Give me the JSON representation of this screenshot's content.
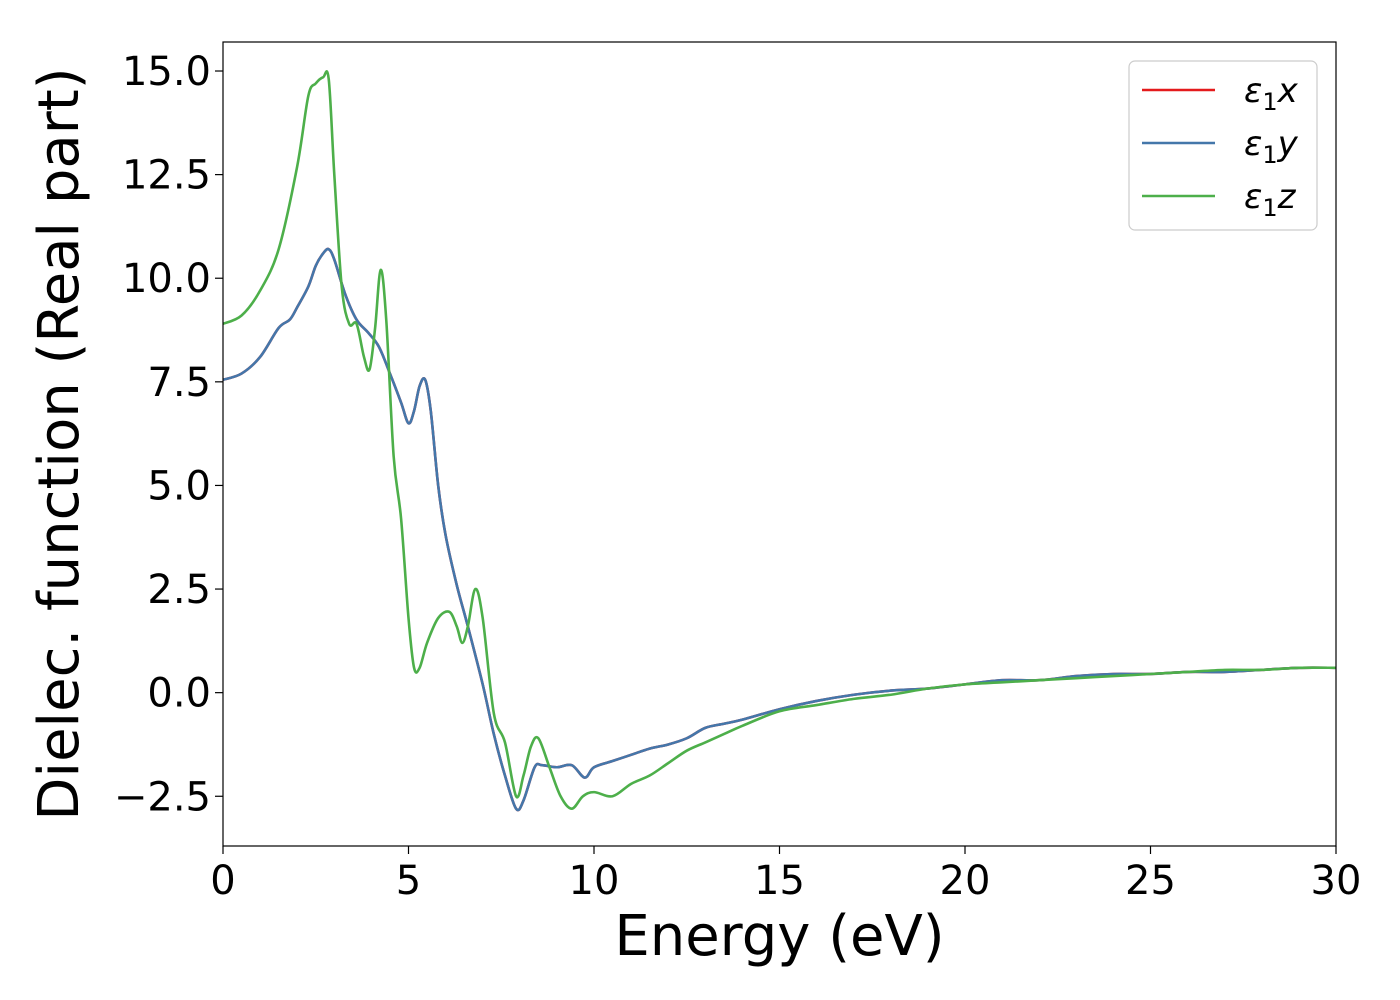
{
  "chart_data": {
    "type": "line",
    "xlabel": "Energy (eV)",
    "ylabel": "Dielec. function (Real part)",
    "xlim": [
      0,
      30
    ],
    "ylim": [
      -3.7,
      15.7
    ],
    "x_ticks": [
      0,
      5,
      10,
      15,
      20,
      25,
      30
    ],
    "x_tick_labels": [
      "0",
      "5",
      "10",
      "15",
      "20",
      "25",
      "30"
    ],
    "y_ticks": [
      -2.5,
      0.0,
      2.5,
      5.0,
      7.5,
      10.0,
      12.5,
      15.0
    ],
    "y_tick_labels": [
      "−2.5",
      "0.0",
      "2.5",
      "5.0",
      "7.5",
      "10.0",
      "12.5",
      "15.0"
    ],
    "grid": false,
    "legend_position": "top-right",
    "series": [
      {
        "name": "ε1x",
        "legend_main": "ε",
        "legend_sub": "1",
        "legend_suffix": "x",
        "color": "#e41a1c",
        "x": [
          0,
          0.5,
          1.0,
          1.5,
          1.8,
          2.0,
          2.3,
          2.5,
          2.7,
          2.85,
          3.0,
          3.3,
          3.6,
          3.9,
          4.2,
          4.5,
          4.8,
          5.0,
          5.15,
          5.3,
          5.45,
          5.6,
          5.8,
          6.0,
          6.3,
          6.6,
          7.0,
          7.3,
          7.6,
          7.9,
          8.1,
          8.4,
          8.6,
          9.0,
          9.4,
          9.75,
          10.0,
          10.5,
          11.0,
          11.5,
          12.0,
          12.5,
          13.0,
          13.5,
          14.0,
          15.0,
          16.0,
          17.0,
          18.0,
          19.0,
          20.0,
          21.0,
          22.0,
          23.0,
          24.0,
          25.0,
          26.0,
          27.0,
          28.0,
          29.0,
          30.0
        ],
        "y": [
          7.55,
          7.7,
          8.1,
          8.8,
          9.0,
          9.3,
          9.8,
          10.3,
          10.6,
          10.7,
          10.45,
          9.6,
          9.0,
          8.7,
          8.35,
          7.7,
          7.0,
          6.5,
          6.8,
          7.4,
          7.55,
          6.8,
          5.0,
          3.8,
          2.6,
          1.6,
          0.2,
          -1.0,
          -2.0,
          -2.8,
          -2.6,
          -1.8,
          -1.75,
          -1.8,
          -1.75,
          -2.05,
          -1.8,
          -1.65,
          -1.5,
          -1.35,
          -1.25,
          -1.1,
          -0.85,
          -0.75,
          -0.65,
          -0.4,
          -0.2,
          -0.05,
          0.05,
          0.1,
          0.2,
          0.3,
          0.3,
          0.4,
          0.45,
          0.45,
          0.5,
          0.5,
          0.55,
          0.6,
          0.6
        ]
      },
      {
        "name": "ε1y",
        "legend_main": "ε",
        "legend_sub": "1",
        "legend_suffix": "y",
        "color": "#4477aa",
        "x": [
          0,
          0.5,
          1.0,
          1.5,
          1.8,
          2.0,
          2.3,
          2.5,
          2.7,
          2.85,
          3.0,
          3.3,
          3.6,
          3.9,
          4.2,
          4.5,
          4.8,
          5.0,
          5.15,
          5.3,
          5.45,
          5.6,
          5.8,
          6.0,
          6.3,
          6.6,
          7.0,
          7.3,
          7.6,
          7.9,
          8.1,
          8.4,
          8.6,
          9.0,
          9.4,
          9.75,
          10.0,
          10.5,
          11.0,
          11.5,
          12.0,
          12.5,
          13.0,
          13.5,
          14.0,
          15.0,
          16.0,
          17.0,
          18.0,
          19.0,
          20.0,
          21.0,
          22.0,
          23.0,
          24.0,
          25.0,
          26.0,
          27.0,
          28.0,
          29.0,
          30.0
        ],
        "y": [
          7.55,
          7.7,
          8.1,
          8.8,
          9.0,
          9.3,
          9.8,
          10.3,
          10.6,
          10.7,
          10.45,
          9.6,
          9.0,
          8.7,
          8.35,
          7.7,
          7.0,
          6.5,
          6.8,
          7.4,
          7.55,
          6.8,
          5.0,
          3.8,
          2.6,
          1.6,
          0.2,
          -1.0,
          -2.0,
          -2.8,
          -2.6,
          -1.8,
          -1.75,
          -1.8,
          -1.75,
          -2.05,
          -1.8,
          -1.65,
          -1.5,
          -1.35,
          -1.25,
          -1.1,
          -0.85,
          -0.75,
          -0.65,
          -0.4,
          -0.2,
          -0.05,
          0.05,
          0.1,
          0.2,
          0.3,
          0.3,
          0.4,
          0.45,
          0.45,
          0.5,
          0.5,
          0.55,
          0.6,
          0.6
        ]
      },
      {
        "name": "ε1z",
        "legend_main": "ε",
        "legend_sub": "1",
        "legend_suffix": "z",
        "color": "#4daf4a",
        "x": [
          0,
          0.5,
          1.0,
          1.5,
          2.0,
          2.3,
          2.5,
          2.7,
          2.85,
          3.0,
          3.2,
          3.4,
          3.6,
          3.8,
          3.95,
          4.1,
          4.25,
          4.4,
          4.6,
          4.8,
          5.0,
          5.15,
          5.3,
          5.5,
          5.8,
          6.1,
          6.3,
          6.45,
          6.6,
          6.8,
          7.0,
          7.3,
          7.6,
          7.9,
          8.1,
          8.3,
          8.5,
          8.8,
          9.1,
          9.4,
          9.7,
          10.0,
          10.5,
          11.0,
          11.5,
          12.0,
          12.5,
          13.0,
          13.5,
          14.0,
          15.0,
          16.0,
          17.0,
          18.0,
          19.0,
          20.0,
          21.0,
          22.0,
          23.0,
          24.0,
          25.0,
          26.0,
          27.0,
          28.0,
          29.0,
          30.0
        ],
        "y": [
          8.9,
          9.1,
          9.7,
          10.7,
          12.7,
          14.4,
          14.7,
          14.85,
          14.8,
          12.5,
          9.8,
          8.9,
          8.9,
          8.1,
          7.8,
          8.8,
          10.2,
          9.0,
          5.7,
          4.2,
          1.8,
          0.6,
          0.6,
          1.2,
          1.8,
          1.95,
          1.6,
          1.2,
          1.6,
          2.5,
          1.8,
          -0.5,
          -1.2,
          -2.5,
          -2.0,
          -1.3,
          -1.1,
          -1.8,
          -2.5,
          -2.8,
          -2.5,
          -2.4,
          -2.5,
          -2.2,
          -2.0,
          -1.7,
          -1.4,
          -1.2,
          -1.0,
          -0.8,
          -0.45,
          -0.3,
          -0.15,
          -0.05,
          0.1,
          0.2,
          0.25,
          0.3,
          0.35,
          0.4,
          0.45,
          0.5,
          0.55,
          0.55,
          0.6,
          0.6
        ]
      }
    ]
  }
}
